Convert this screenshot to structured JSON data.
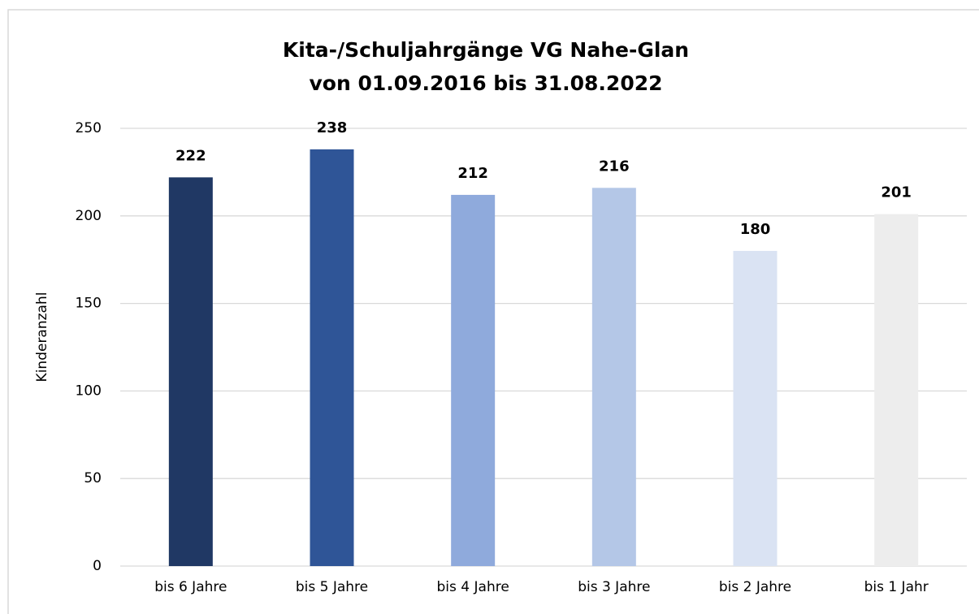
{
  "chart_data": {
    "type": "bar",
    "title": "Kita-/Schuljahrgänge VG Nahe-Glan",
    "subtitle": "von 01.09.2016 bis 31.08.2022",
    "y_label": "Kinderanzahl",
    "categories": [
      "bis 6 Jahre",
      "bis 5 Jahre",
      "bis 4 Jahre",
      "bis 3 Jahre",
      "bis 2 Jahre",
      "bis 1 Jahr"
    ],
    "values": [
      222,
      238,
      212,
      216,
      180,
      201
    ],
    "colors": [
      "#203864",
      "#2f5597",
      "#8faadc",
      "#b4c7e7",
      "#dae3f3",
      "#ededed"
    ],
    "ylim": [
      0,
      250
    ],
    "yticks": [
      0,
      50,
      100,
      150,
      200,
      250
    ],
    "grid": true
  }
}
